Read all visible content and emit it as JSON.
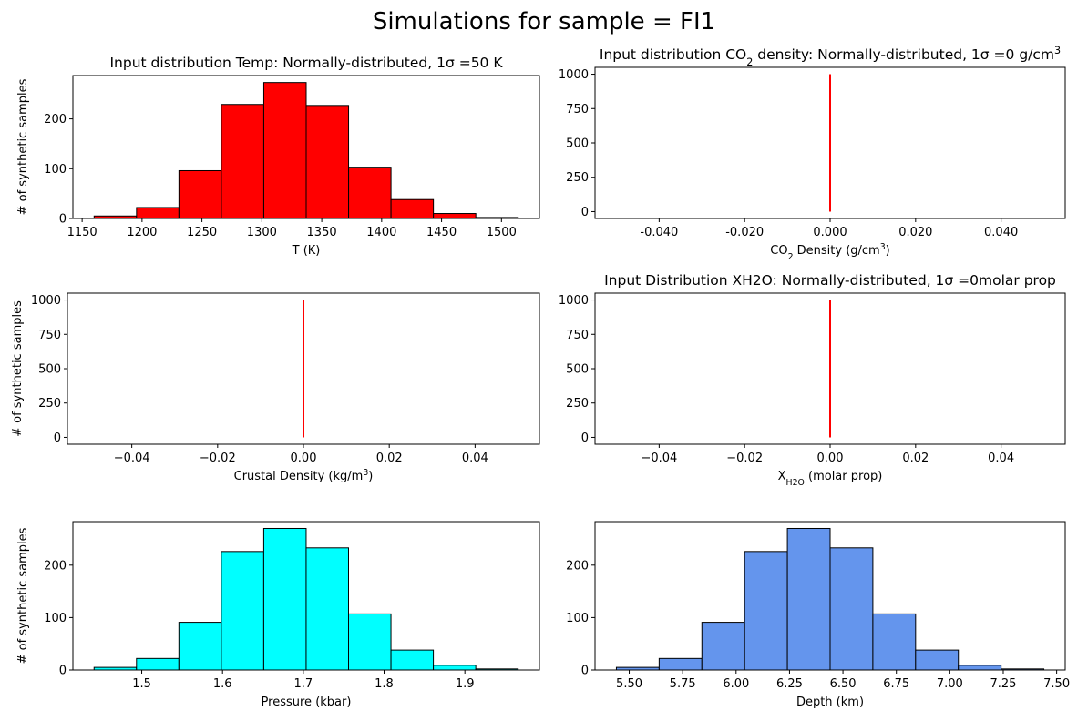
{
  "figure": {
    "suptitle": "Simulations for sample = FI1"
  },
  "colors": {
    "temp_bar": "#ff0000",
    "pressure_bar": "#00ffff",
    "depth_bar": "#6495ed",
    "edge": "#000000",
    "vline": "#ff0000"
  },
  "chart_data": [
    {
      "id": "temp",
      "type": "bar",
      "title": "Input distribution Temp: Normally-distributed, 1σ =50 K",
      "xlabel": "T (K)",
      "ylabel": "# of synthetic samples",
      "bar_color": "#ff0000",
      "bin_edges": [
        1160,
        1195.4,
        1230.8,
        1266.2,
        1301.6,
        1337,
        1372.4,
        1407.8,
        1443.2,
        1478.6,
        1514
      ],
      "values": [
        5,
        22,
        96,
        229,
        273,
        227,
        103,
        38,
        10,
        2
      ],
      "xlim": [
        1142.3,
        1531.7
      ],
      "ylim": [
        0,
        287
      ],
      "xticks": [
        1150,
        1200,
        1250,
        1300,
        1350,
        1400,
        1450,
        1500
      ],
      "xtick_labels": [
        "1150",
        "1200",
        "1250",
        "1300",
        "1350",
        "1400",
        "1450",
        "1500"
      ],
      "yticks": [
        0,
        100,
        200
      ],
      "ytick_labels": [
        "0",
        "100",
        "200"
      ],
      "grid": false
    },
    {
      "id": "co2",
      "type": "line",
      "title_parts": [
        "Input distribution CO",
        "2",
        " density: Normally-distributed, 1σ =0 g/cm",
        "3"
      ],
      "xlabel_parts": [
        "CO",
        "2",
        " Density (g/cm",
        "3",
        ")"
      ],
      "ylabel": "",
      "line_color": "#ff0000",
      "x": [
        0,
        0
      ],
      "y": [
        0,
        1000
      ],
      "xlim": [
        -0.055,
        0.055
      ],
      "ylim": [
        -50,
        1050
      ],
      "xticks": [
        -0.04,
        -0.02,
        0,
        0.02,
        0.04
      ],
      "xtick_labels": [
        "-0.040",
        "-0.020",
        "0.000",
        "0.020",
        "0.040"
      ],
      "yticks": [
        0,
        250,
        500,
        750,
        1000
      ],
      "ytick_labels": [
        "0",
        "250",
        "500",
        "750",
        "1000"
      ],
      "grid": false
    },
    {
      "id": "crustal",
      "type": "line",
      "title": "",
      "xlabel_parts": [
        "Crustal Density (kg/m",
        "3",
        ")"
      ],
      "ylabel": "# of synthetic samples",
      "line_color": "#ff0000",
      "x": [
        0,
        0
      ],
      "y": [
        0,
        1000
      ],
      "xlim": [
        -0.055,
        0.055
      ],
      "ylim": [
        -50,
        1050
      ],
      "xticks": [
        -0.04,
        -0.02,
        0,
        0.02,
        0.04
      ],
      "xtick_labels": [
        "−0.04",
        "−0.02",
        "0.00",
        "0.02",
        "0.04"
      ],
      "yticks": [
        0,
        250,
        500,
        750,
        1000
      ],
      "ytick_labels": [
        "0",
        "250",
        "500",
        "750",
        "1000"
      ],
      "grid": false
    },
    {
      "id": "xh2o",
      "type": "line",
      "title": "Input Distribution XH2O: Normally-distributed, 1σ =0molar prop",
      "xlabel_parts": [
        "X",
        "H2O",
        " (molar prop)"
      ],
      "ylabel": "",
      "line_color": "#ff0000",
      "x": [
        0,
        0
      ],
      "y": [
        0,
        1000
      ],
      "xlim": [
        -0.055,
        0.055
      ],
      "ylim": [
        -50,
        1050
      ],
      "xticks": [
        -0.04,
        -0.02,
        0,
        0.02,
        0.04
      ],
      "xtick_labels": [
        "−0.04",
        "−0.02",
        "0.00",
        "0.02",
        "0.04"
      ],
      "yticks": [
        0,
        250,
        500,
        750,
        1000
      ],
      "ytick_labels": [
        "0",
        "250",
        "500",
        "750",
        "1000"
      ],
      "grid": false
    },
    {
      "id": "pressure",
      "type": "bar",
      "title": "",
      "xlabel": "Pressure (kbar)",
      "ylabel": "# of synthetic samples",
      "bar_color": "#00ffff",
      "bin_edges": [
        1.441,
        1.4935,
        1.546,
        1.5985,
        1.651,
        1.7035,
        1.756,
        1.8085,
        1.861,
        1.9135,
        1.966
      ],
      "values": [
        5,
        22,
        91,
        226,
        270,
        233,
        107,
        38,
        9,
        2
      ],
      "xlim": [
        1.4148,
        1.9923
      ],
      "ylim": [
        0,
        283
      ],
      "xticks": [
        1.5,
        1.6,
        1.7,
        1.8,
        1.9
      ],
      "xtick_labels": [
        "1.5",
        "1.6",
        "1.7",
        "1.8",
        "1.9"
      ],
      "yticks": [
        0,
        100,
        200
      ],
      "ytick_labels": [
        "0",
        "100",
        "200"
      ],
      "grid": false
    },
    {
      "id": "depth",
      "type": "bar",
      "title": "",
      "xlabel": "Depth (km)",
      "ylabel": "",
      "bar_color": "#6495ed",
      "bin_edges": [
        5.44,
        5.64,
        5.84,
        6.04,
        6.24,
        6.44,
        6.64,
        6.84,
        7.04,
        7.24,
        7.44
      ],
      "values": [
        5,
        22,
        91,
        226,
        270,
        233,
        107,
        38,
        9,
        2
      ],
      "xlim": [
        5.34,
        7.54
      ],
      "ylim": [
        0,
        283
      ],
      "xticks": [
        5.5,
        5.75,
        6.0,
        6.25,
        6.5,
        6.75,
        7.0,
        7.25,
        7.5
      ],
      "xtick_labels": [
        "5.50",
        "5.75",
        "6.00",
        "6.25",
        "6.50",
        "6.75",
        "7.00",
        "7.25",
        "7.50"
      ],
      "yticks": [
        0,
        100,
        200
      ],
      "ytick_labels": [
        "0",
        "100",
        "200"
      ],
      "grid": false
    }
  ]
}
